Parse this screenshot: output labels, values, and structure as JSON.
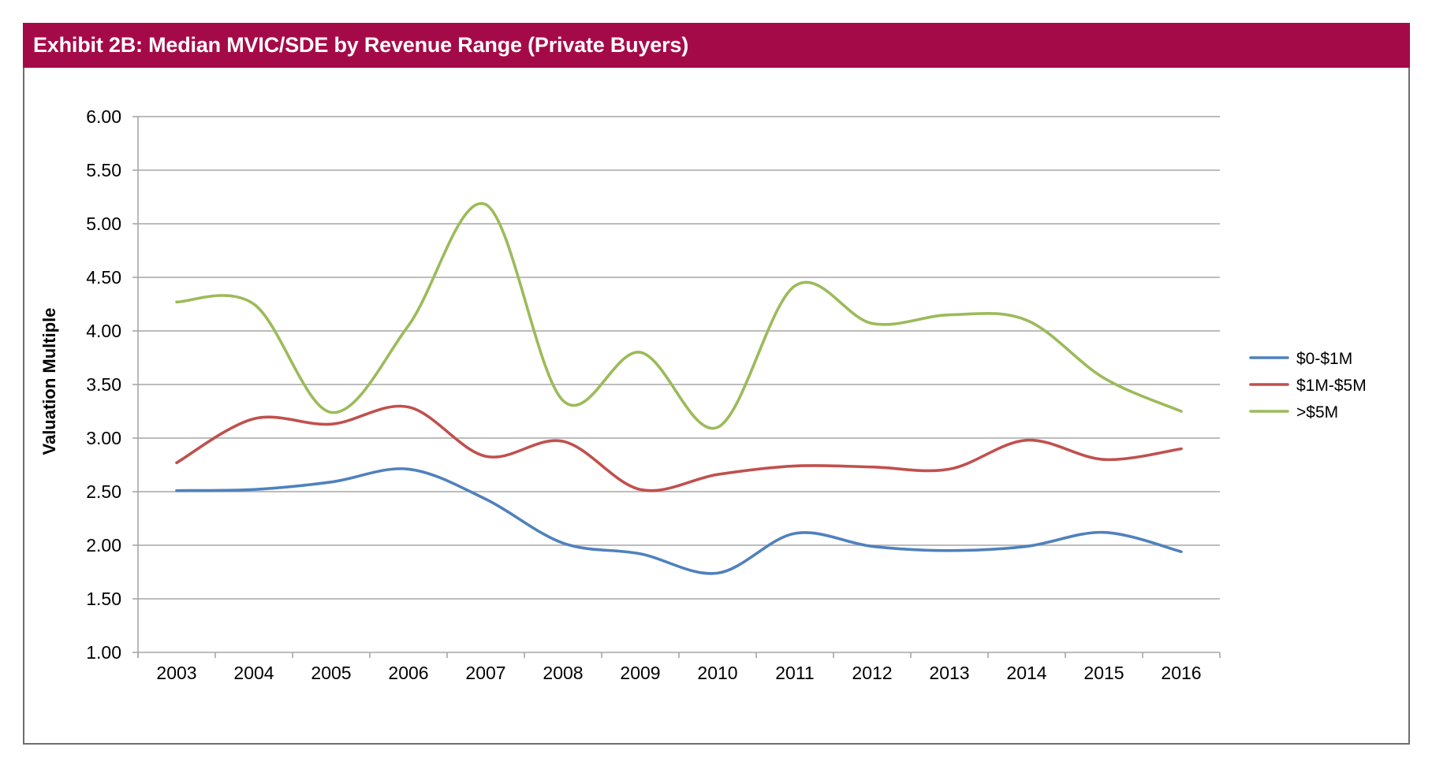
{
  "header": {
    "title": "Exhibit 2B: Median MVIC/SDE by Revenue Range (Private Buyers)",
    "background_color": "#A50A48"
  },
  "chart_data": {
    "type": "line",
    "title": "Exhibit 2B: Median MVIC/SDE by Revenue Range (Private Buyers)",
    "xlabel": "",
    "ylabel": "Valuation Multiple",
    "categories": [
      "2003",
      "2004",
      "2005",
      "2006",
      "2007",
      "2008",
      "2009",
      "2010",
      "2011",
      "2012",
      "2013",
      "2014",
      "2015",
      "2016"
    ],
    "ylim": [
      1.0,
      6.0
    ],
    "yticks": [
      "1.00",
      "1.50",
      "2.00",
      "2.50",
      "3.00",
      "3.50",
      "4.00",
      "4.50",
      "5.00",
      "5.50",
      "6.00"
    ],
    "grid": true,
    "smoothed": true,
    "legend_position": "right",
    "series": [
      {
        "name": "$0-$1M",
        "color": "#4F81BD",
        "values": [
          2.51,
          2.52,
          2.59,
          2.71,
          2.43,
          2.02,
          1.92,
          1.74,
          2.11,
          1.99,
          1.95,
          1.99,
          2.12,
          1.94
        ]
      },
      {
        "name": "$1M-$5M",
        "color": "#C0504D",
        "values": [
          2.77,
          3.18,
          3.13,
          3.29,
          2.83,
          2.97,
          2.52,
          2.66,
          2.74,
          2.73,
          2.71,
          2.98,
          2.8,
          2.9
        ]
      },
      {
        "name": ">$5M",
        "color": "#9BBB59",
        "values": [
          4.27,
          4.25,
          3.24,
          4.05,
          5.18,
          3.35,
          3.8,
          3.1,
          4.42,
          4.07,
          4.15,
          4.1,
          3.56,
          3.25
        ]
      }
    ]
  }
}
